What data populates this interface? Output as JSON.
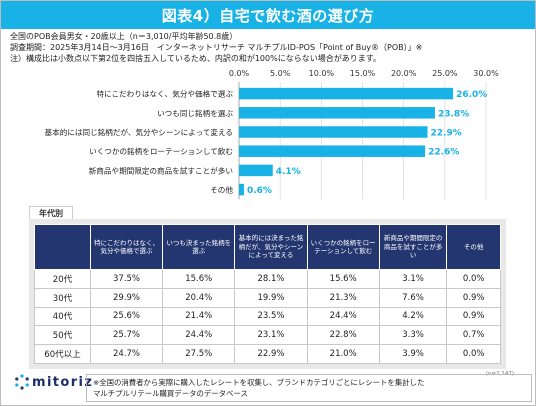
{
  "title": "図表4）自宅で飲む酒の選び方",
  "notes": [
    "全国のPOB会員男女・20歳以上（n＝3,010/平均年齢50.8歳）",
    "調査期間：2025年3月14日〜3月16日　インターネットリサーチ マルチプルID-POS「Point of Buy®（POB）」※",
    "注）構成比は小数点以下第2位を四捨五入しているため、内訳の和が100%にならない場合があります。"
  ],
  "chart_data": {
    "type": "bar",
    "orientation": "horizontal",
    "categories": [
      "特にこだわりはなく、気分や価格で選ぶ",
      "いつも同じ銘柄を選ぶ",
      "基本的には同じ銘柄だが、気分やシーンによって変える",
      "いくつかの銘柄をローテーションして飲む",
      "新商品や期間限定の商品を試すことが多い",
      "その他"
    ],
    "values": [
      26.0,
      23.8,
      22.9,
      22.6,
      4.1,
      0.6
    ],
    "value_labels": [
      "26.0%",
      "23.8%",
      "22.9%",
      "22.6%",
      "4.1%",
      "0.6%"
    ],
    "xlim": [
      0,
      30
    ],
    "ticks": [
      "0.0%",
      "5.0%",
      "10.0%",
      "15.0%",
      "20.0%",
      "25.0%",
      "30.0%"
    ],
    "tick_values": [
      0,
      5,
      10,
      15,
      20,
      25,
      30
    ],
    "grid": true,
    "color": "#19b2e6",
    "label_color": "#19b2e6"
  },
  "age_table": {
    "section_label": "年代別",
    "headers": [
      "",
      "特にこだわりはなく、気分や価格で選ぶ",
      "いつも決まった銘柄を選ぶ",
      "基本的には決まった銘柄だが、気分やシーンによって変える",
      "いくつかの銘柄をローテーションして飲む",
      "新商品や期間限定の商品を試すことが多い",
      "その他"
    ],
    "rows": [
      {
        "age": "20代",
        "cells": [
          "37.5%",
          "15.6%",
          "28.1%",
          "15.6%",
          "3.1%",
          "0.0%"
        ]
      },
      {
        "age": "30代",
        "cells": [
          "29.9%",
          "20.4%",
          "19.9%",
          "21.3%",
          "7.6%",
          "0.9%"
        ]
      },
      {
        "age": "40代",
        "cells": [
          "25.6%",
          "21.4%",
          "23.5%",
          "24.4%",
          "4.2%",
          "0.9%"
        ]
      },
      {
        "age": "50代",
        "cells": [
          "25.7%",
          "24.4%",
          "23.1%",
          "22.8%",
          "3.3%",
          "0.7%"
        ]
      },
      {
        "age": "60代以上",
        "cells": [
          "24.7%",
          "27.5%",
          "22.9%",
          "21.0%",
          "3.9%",
          "0.0%"
        ]
      }
    ],
    "n_note": "(n=2,147)"
  },
  "footer": {
    "logo": "mitoriz",
    "note_line1": "※全国の消費者から実際に購入したレシートを収集し、ブランドカテゴリごとにレシートを集計した",
    "note_line2": "マルチプルリテール購買データのデータベース"
  },
  "colors": {
    "title_bg": "#19b2e6",
    "table_header_bg": "#23366f",
    "bar": "#19b2e6"
  }
}
